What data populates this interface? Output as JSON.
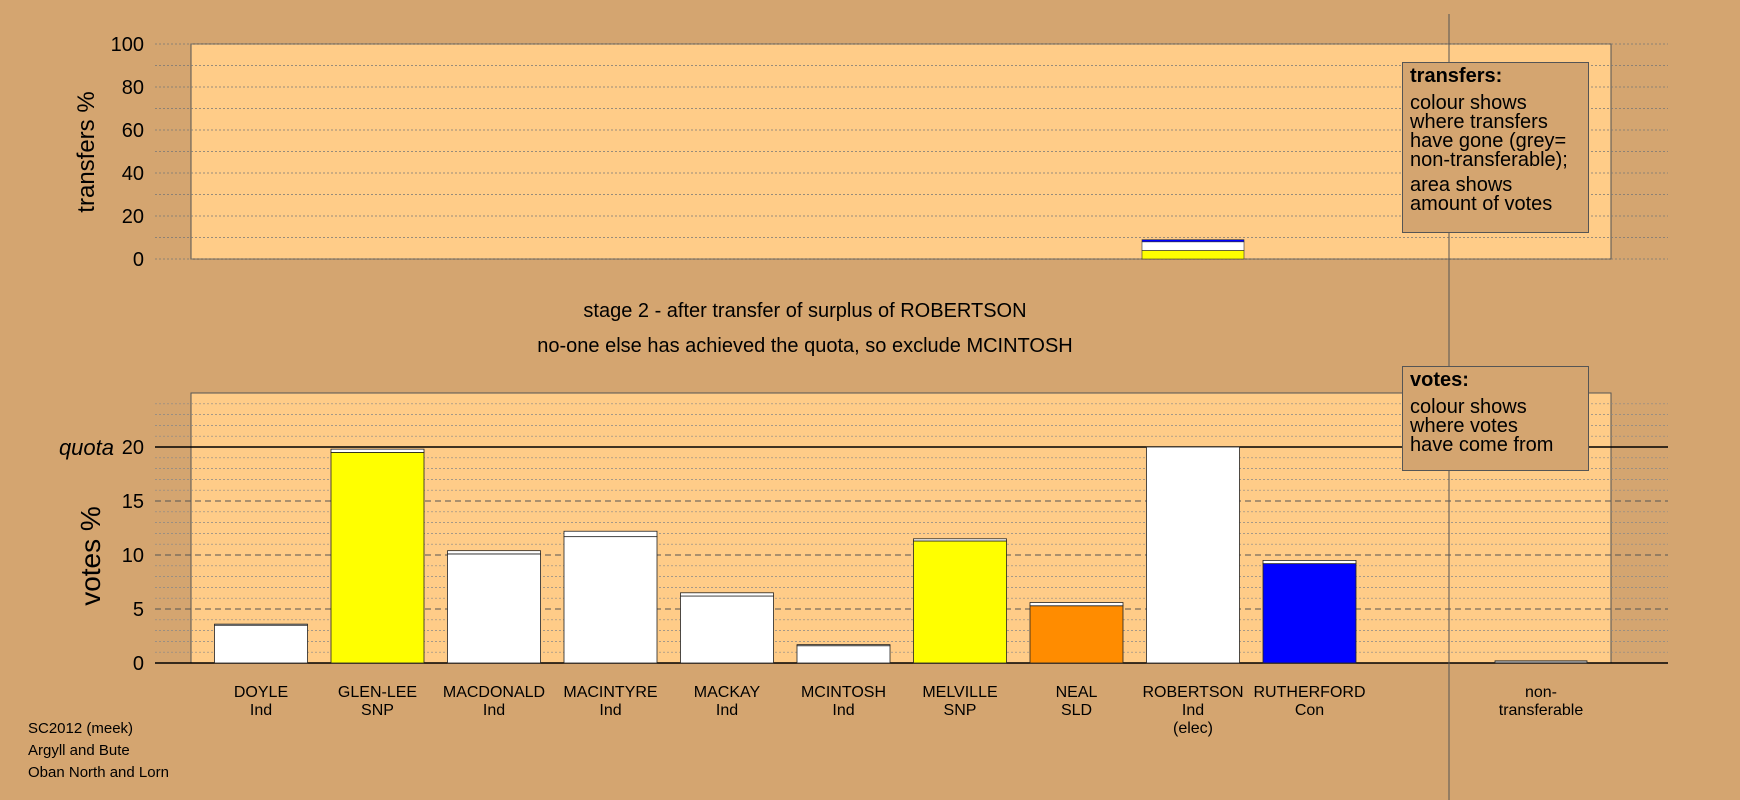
{
  "chart_data": [
    {
      "type": "bar",
      "panel": "transfers",
      "ylabel": "transfers %",
      "ylim": [
        0,
        100
      ],
      "yticks": [
        0,
        20,
        40,
        60,
        80,
        100
      ],
      "categories": [
        "ROBERTSON"
      ],
      "stack": [
        {
          "color": "#ffff00",
          "value": 4.0
        },
        {
          "color": "#ffffff",
          "value": 4.0
        },
        {
          "color": "#0000ff",
          "value": 1.0
        }
      ]
    },
    {
      "type": "bar",
      "panel": "votes",
      "ylabel": "votes %",
      "ylim": [
        0,
        25
      ],
      "yticks": [
        0,
        5,
        10,
        15,
        20
      ],
      "quota": 20,
      "quota_label": "quota",
      "categories": [
        {
          "name": "DOYLE",
          "party": "Ind",
          "extra": ""
        },
        {
          "name": "GLEN-LEE",
          "party": "SNP",
          "extra": ""
        },
        {
          "name": "MACDONALD",
          "party": "Ind",
          "extra": ""
        },
        {
          "name": "MACINTYRE",
          "party": "Ind",
          "extra": ""
        },
        {
          "name": "MACKAY",
          "party": "Ind",
          "extra": ""
        },
        {
          "name": "MCINTOSH",
          "party": "Ind",
          "extra": ""
        },
        {
          "name": "MELVILLE",
          "party": "SNP",
          "extra": ""
        },
        {
          "name": "NEAL",
          "party": "SLD",
          "extra": ""
        },
        {
          "name": "ROBERTSON",
          "party": "Ind",
          "extra": "(elec)"
        },
        {
          "name": "RUTHERFORD",
          "party": "Con",
          "extra": ""
        }
      ],
      "series": [
        {
          "values": [
            3.5,
            19.5,
            10.1,
            11.7,
            6.2,
            1.6,
            11.3,
            5.3,
            20.0,
            9.2
          ],
          "colors": [
            "#ffffff",
            "#ffff00",
            "#ffffff",
            "#ffffff",
            "#ffffff",
            "#ffffff",
            "#ffff00",
            "#ff8c00",
            "#ffffff",
            "#0000ff"
          ]
        },
        {
          "values": [
            0.1,
            0.3,
            0.3,
            0.5,
            0.3,
            0.1,
            0.2,
            0.3,
            0.0,
            0.3
          ],
          "colors": [
            "#ffffff",
            "#ffffff",
            "#ffffff",
            "#ffffff",
            "#ffffff",
            "#ffffff",
            "#ffffff",
            "#ffffff",
            "#ffffff",
            "#ffffff"
          ]
        }
      ],
      "nontransferable": {
        "label_line1": "non-",
        "label_line2": "transferable",
        "value": 0.2
      }
    }
  ],
  "captions": {
    "line1": "stage 2 - after transfer of surplus of ROBERTSON",
    "line2": "no-one else has achieved the quota, so exclude MCINTOSH"
  },
  "legend_transfers": {
    "heading": "transfers:",
    "lines": [
      "colour shows",
      "where transfers",
      "have gone (grey=",
      "non-transferable);"
    ],
    "lines2": [
      "area shows",
      "amount of votes"
    ]
  },
  "legend_votes": {
    "heading": "votes:",
    "lines": [
      "colour shows",
      "where votes",
      "have come from"
    ]
  },
  "footer": [
    "SC2012 (meek)",
    "Argyll and Bute",
    "Oban North and Lorn"
  ],
  "colors": {
    "background": "#d4a570",
    "panel": "#ffcc88"
  }
}
